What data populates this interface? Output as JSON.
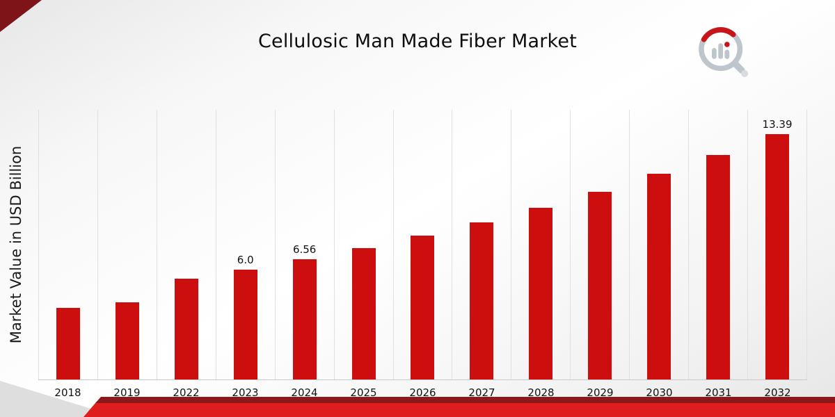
{
  "page": {
    "title": "Cellulosic Man Made Fiber Market"
  },
  "chart_data": {
    "type": "bar",
    "title": "Cellulosic Man Made Fiber Market",
    "ylabel": "Market Value in USD Billion",
    "xlabel": "",
    "categories": [
      "2018",
      "2019",
      "2022",
      "2023",
      "2024",
      "2025",
      "2026",
      "2027",
      "2028",
      "2029",
      "2030",
      "2031",
      "2032"
    ],
    "values": [
      3.9,
      4.2,
      5.5,
      6.0,
      6.56,
      7.17,
      7.84,
      8.57,
      9.37,
      10.24,
      11.2,
      12.25,
      13.39
    ],
    "bar_labels": [
      "",
      "",
      "",
      "6.0",
      "6.56",
      "",
      "",
      "",
      "",
      "",
      "",
      "",
      "13.39"
    ],
    "ylim": [
      0,
      14.7
    ],
    "grid": "vertical-only",
    "legend": "none",
    "bar_color": "#cc0e0e"
  },
  "colors": {
    "bar": "#cc0e0e",
    "bottom_band_red": "#e01d1d",
    "bottom_band_maroon": "#8c181b",
    "corner_triangle": "#7e1417",
    "gridline": "#e0e0e0"
  },
  "icons": {
    "brand_logo": "bar-chart-magnifier-logo"
  }
}
